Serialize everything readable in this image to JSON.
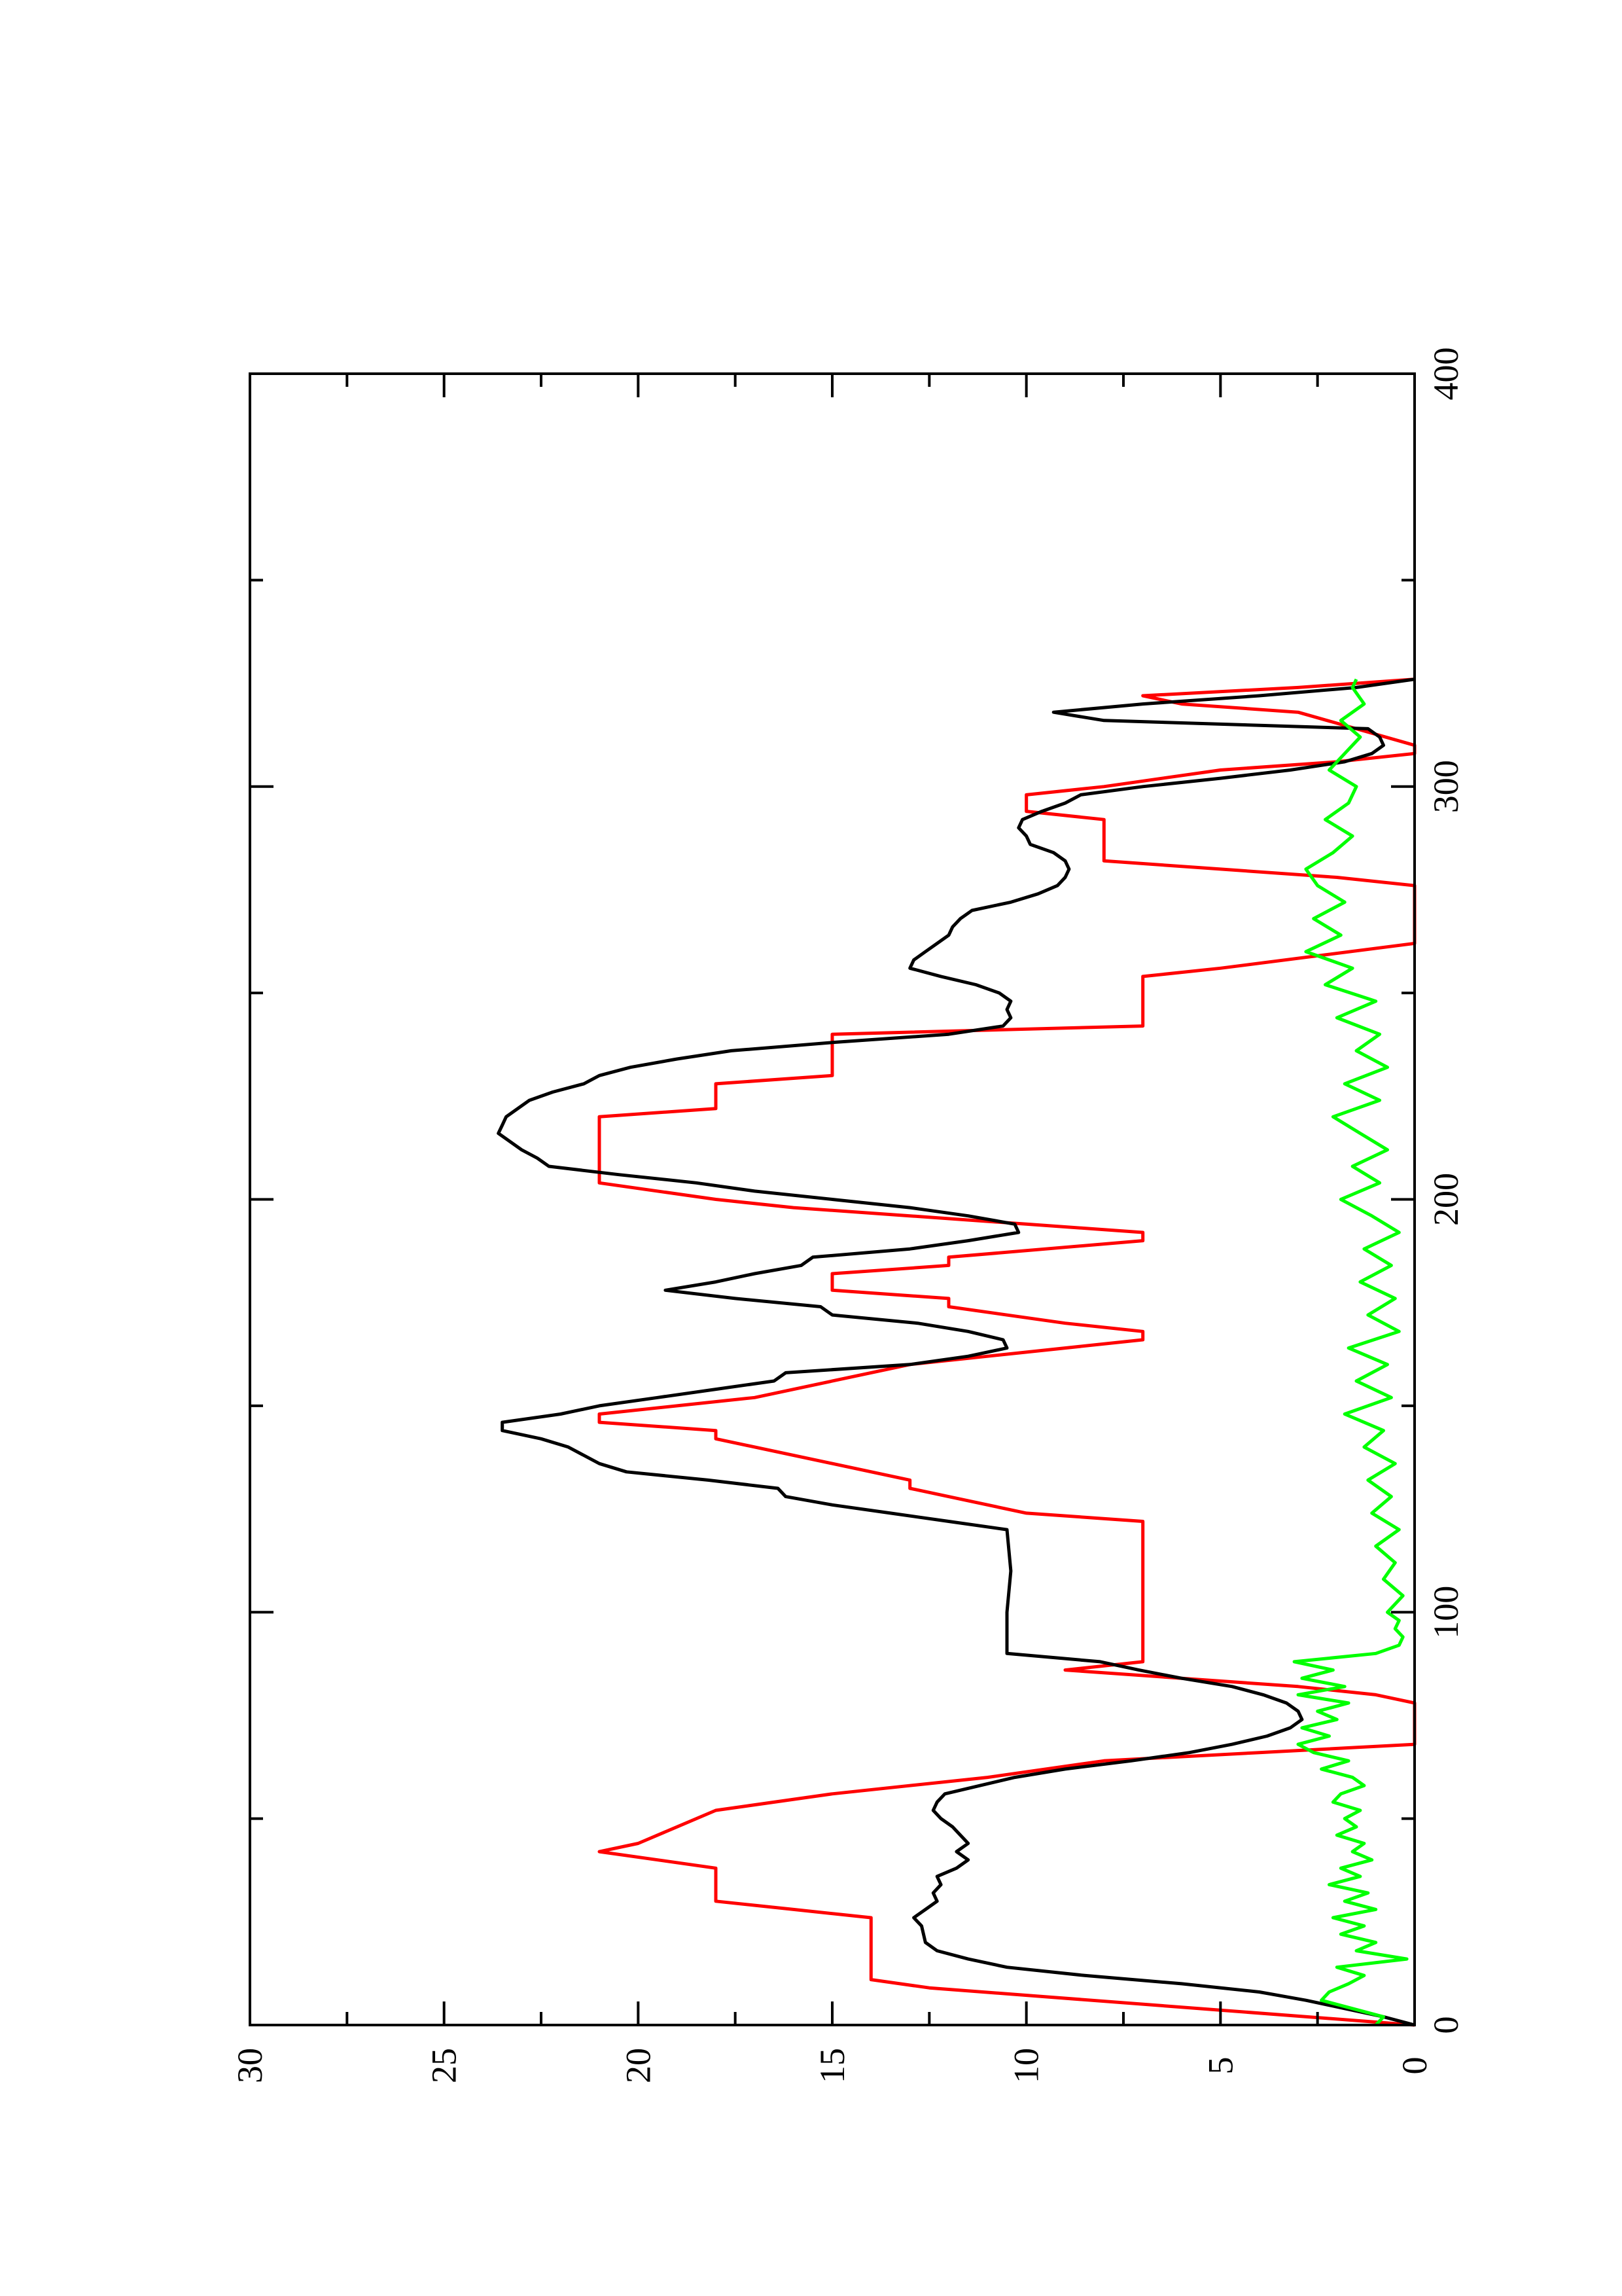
{
  "chart_data": {
    "type": "line",
    "orientation": "rotated-90-ccw",
    "title": "",
    "xlabel": "",
    "ylabel": "",
    "xlim": [
      0,
      400
    ],
    "ylim": [
      0,
      30
    ],
    "x_ticks": [
      0,
      100,
      200,
      300,
      400
    ],
    "y_ticks": [
      0,
      5,
      10,
      15,
      20,
      25,
      30
    ],
    "grid": false,
    "legend": "none",
    "series": [
      {
        "color": "#ff0000",
        "x": [
          0,
          9,
          11,
          14,
          26,
          28,
          30,
          38,
          40,
          42,
          44,
          52,
          56,
          60,
          64,
          66,
          68,
          78,
          80,
          82,
          84,
          86,
          88,
          90,
          122,
          124,
          130,
          132,
          142,
          144,
          146,
          148,
          150,
          152,
          160,
          162,
          166,
          168,
          170,
          174,
          176,
          178,
          182,
          184,
          186,
          190,
          192,
          194,
          196,
          198,
          200,
          204,
          206,
          208,
          220,
          222,
          228,
          230,
          240,
          242,
          254,
          256,
          262,
          264,
          276,
          278,
          280,
          282,
          292,
          294,
          298,
          300,
          304,
          306,
          308,
          310,
          318,
          320,
          322,
          324,
          326
        ],
        "y": [
          0,
          12.5,
          14,
          14,
          14,
          16,
          18,
          18,
          19.5,
          21,
          20,
          18,
          15,
          11,
          8,
          4,
          0,
          0,
          1,
          3,
          6,
          9,
          7,
          7,
          7,
          10,
          13,
          13,
          18,
          18,
          21,
          21,
          19,
          17,
          13,
          11,
          7,
          7,
          9,
          12,
          12,
          15,
          15,
          12,
          12,
          7,
          7,
          10,
          13,
          16,
          18,
          21,
          21,
          21,
          21,
          18,
          18,
          15,
          15,
          7,
          7,
          5,
          0,
          0,
          0,
          2,
          5,
          8,
          8,
          10,
          10,
          8,
          5,
          2,
          0,
          0,
          3,
          6,
          7,
          3,
          0
        ]
      },
      {
        "color": "#000000",
        "x": [
          0,
          2,
          4,
          6,
          8,
          10,
          12,
          14,
          16,
          18,
          20,
          24,
          26,
          28,
          30,
          32,
          34,
          36,
          38,
          40,
          42,
          44,
          46,
          48,
          50,
          52,
          54,
          56,
          58,
          60,
          62,
          64,
          66,
          68,
          70,
          72,
          74,
          76,
          78,
          80,
          82,
          84,
          86,
          88,
          90,
          100,
          110,
          120,
          122,
          124,
          126,
          128,
          130,
          132,
          134,
          136,
          138,
          140,
          142,
          144,
          146,
          148,
          150,
          152,
          154,
          156,
          158,
          160,
          162,
          164,
          166,
          168,
          170,
          172,
          174,
          176,
          178,
          180,
          182,
          184,
          186,
          188,
          190,
          192,
          194,
          196,
          198,
          200,
          202,
          204,
          206,
          208,
          210,
          212,
          214,
          216,
          218,
          220,
          222,
          224,
          226,
          228,
          230,
          232,
          234,
          236,
          238,
          240,
          242,
          244,
          246,
          248,
          250,
          252,
          254,
          256,
          258,
          260,
          262,
          264,
          266,
          268,
          270,
          272,
          274,
          276,
          278,
          280,
          282,
          284,
          286,
          288,
          290,
          292,
          294,
          296,
          298,
          300,
          302,
          304,
          306,
          308,
          310,
          312,
          314,
          316,
          318,
          320,
          322,
          324,
          326
        ],
        "y": [
          0,
          0.8,
          1.8,
          2.8,
          4,
          6,
          8.5,
          10.5,
          11.5,
          12.3,
          12.6,
          12.7,
          12.9,
          12.6,
          12.3,
          12.4,
          12.2,
          12.3,
          11.8,
          11.5,
          11.8,
          11.5,
          11.7,
          11.9,
          12.2,
          12.4,
          12.3,
          12.1,
          11.2,
          10.3,
          9.0,
          7.3,
          5.8,
          4.7,
          3.8,
          3.2,
          2.9,
          3.0,
          3.3,
          3.9,
          4.7,
          6.0,
          7.1,
          8.1,
          10.5,
          10.5,
          10.4,
          10.5,
          12.0,
          13.5,
          15.0,
          16.2,
          16.4,
          18.2,
          20.3,
          21.0,
          21.4,
          21.8,
          22.5,
          23.5,
          23.5,
          22.0,
          21.0,
          19.5,
          18.0,
          16.5,
          16.2,
          13.0,
          11.5,
          10.5,
          10.6,
          11.5,
          12.8,
          15.0,
          15.3,
          17.5,
          19.3,
          18.0,
          17.0,
          15.8,
          15.5,
          13.0,
          11.5,
          10.2,
          10.3,
          11.5,
          13.0,
          15.0,
          17.0,
          18.5,
          20.5,
          22.3,
          22.6,
          23.0,
          23.3,
          23.6,
          23.5,
          23.4,
          23.1,
          22.8,
          22.2,
          21.4,
          21.0,
          20.2,
          19.0,
          17.6,
          15.0,
          12.0,
          10.6,
          10.4,
          10.5,
          10.4,
          10.7,
          11.3,
          12.2,
          13.0,
          12.9,
          12.6,
          12.3,
          12.0,
          11.9,
          11.7,
          11.4,
          10.4,
          9.7,
          9.2,
          9.0,
          8.9,
          9.0,
          9.3,
          9.9,
          10.0,
          10.2,
          10.1,
          9.6,
          9.0,
          8.6,
          7.0,
          5.0,
          3.2,
          1.8,
          1.1,
          0.8,
          0.9,
          1.2,
          8.0,
          9.3,
          7.0,
          4.0,
          1.5,
          0
        ]
      },
      {
        "color": "#00ff00",
        "x": [
          0,
          2,
          4,
          6,
          8,
          10,
          12,
          14,
          16,
          18,
          20,
          22,
          24,
          26,
          28,
          30,
          32,
          34,
          36,
          38,
          40,
          42,
          44,
          46,
          48,
          50,
          52,
          54,
          56,
          58,
          60,
          62,
          64,
          66,
          68,
          70,
          72,
          74,
          76,
          78,
          80,
          82,
          84,
          86,
          88,
          90,
          92,
          94,
          96,
          98,
          100,
          104,
          108,
          112,
          116,
          120,
          124,
          128,
          132,
          136,
          140,
          144,
          148,
          152,
          156,
          160,
          164,
          168,
          172,
          176,
          180,
          184,
          188,
          192,
          196,
          200,
          204,
          208,
          212,
          216,
          220,
          224,
          228,
          232,
          236,
          240,
          244,
          248,
          252,
          256,
          260,
          264,
          268,
          272,
          276,
          280,
          284,
          288,
          292,
          296,
          300,
          304,
          308,
          312,
          316,
          320,
          324,
          326
        ],
        "y": [
          1.0,
          0.8,
          1.6,
          2.4,
          2.2,
          1.7,
          1.3,
          2.0,
          0.2,
          1.5,
          1.0,
          1.9,
          1.3,
          2.1,
          1.0,
          1.8,
          1.2,
          2.2,
          1.4,
          1.9,
          1.1,
          1.6,
          1.3,
          2.0,
          1.5,
          1.8,
          1.4,
          2.1,
          1.9,
          1.3,
          1.6,
          2.4,
          1.7,
          2.6,
          3.0,
          2.2,
          2.9,
          2.0,
          2.5,
          1.7,
          3.0,
          1.8,
          2.9,
          2.1,
          3.1,
          1.0,
          0.4,
          0.3,
          0.5,
          0.4,
          0.7,
          0.3,
          0.8,
          0.5,
          1.0,
          0.4,
          1.1,
          0.6,
          1.2,
          0.5,
          1.3,
          0.8,
          1.8,
          0.6,
          1.5,
          0.7,
          1.7,
          0.4,
          1.2,
          0.5,
          1.4,
          0.6,
          1.3,
          0.4,
          1.1,
          1.9,
          0.9,
          1.6,
          0.7,
          1.4,
          2.1,
          0.9,
          1.8,
          0.7,
          1.5,
          0.9,
          2.0,
          1.0,
          2.3,
          1.6,
          2.8,
          1.9,
          2.6,
          1.8,
          2.5,
          2.8,
          2.1,
          1.6,
          2.3,
          1.7,
          1.5,
          2.2,
          1.8,
          1.4,
          1.9,
          1.3,
          1.6,
          1.5
        ]
      }
    ]
  }
}
